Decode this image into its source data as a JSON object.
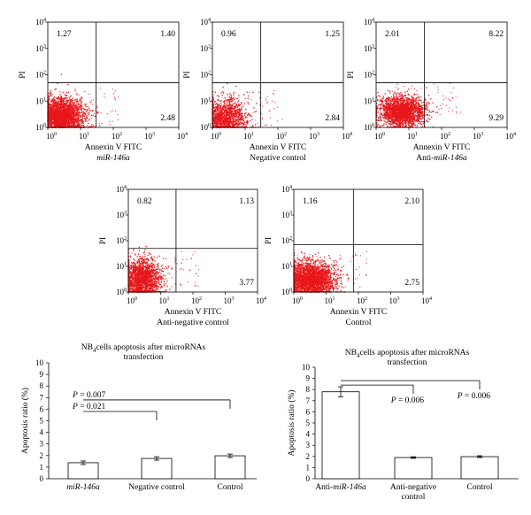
{
  "figure": {
    "caption": ""
  },
  "chart_data": [
    {
      "type": "scatter",
      "title": "",
      "xlabel": "Annexin V FITC",
      "ylabel": "PI",
      "caption": "miR-146a",
      "caption_italic": true,
      "x_scale": "log",
      "y_scale": "log",
      "xlim": [
        1,
        10000
      ],
      "ylim": [
        1,
        10000
      ],
      "x_gate": 30,
      "y_gate": 50,
      "quadrant_values": {
        "upper_left": "1.27",
        "upper_right": "1.40",
        "lower_right": "2.48"
      },
      "cloud": {
        "x_center": 2.5,
        "y_center": 2.5,
        "x_spread": 0.35,
        "y_spread": 0.35,
        "events": 2600,
        "seed": 11
      }
    },
    {
      "type": "scatter",
      "title": "",
      "xlabel": "Annexin V FITC",
      "ylabel": "PI",
      "caption": "Negative control",
      "caption_italic": false,
      "x_scale": "log",
      "y_scale": "log",
      "xlim": [
        1,
        10000
      ],
      "ylim": [
        1,
        10000
      ],
      "x_gate": 30,
      "y_gate": 50,
      "quadrant_values": {
        "upper_left": "0.96",
        "upper_right": "1.25",
        "lower_right": "2.84"
      },
      "cloud": {
        "x_center": 2.2,
        "y_center": 2.0,
        "x_spread": 0.35,
        "y_spread": 0.4,
        "events": 1500,
        "seed": 23
      }
    },
    {
      "type": "scatter",
      "title": "",
      "xlabel": "Annexin V FITC",
      "ylabel": "PI",
      "caption": "Anti-miR-146a",
      "caption_italic": false,
      "x_scale": "log",
      "y_scale": "log",
      "xlim": [
        1,
        10000
      ],
      "ylim": [
        1,
        10000
      ],
      "x_gate": 30,
      "y_gate": 50,
      "quadrant_values": {
        "upper_left": "2.01",
        "upper_right": "8.22",
        "lower_right": "9.29"
      },
      "cloud": {
        "x_center": 6,
        "y_center": 4,
        "x_spread": 0.35,
        "y_spread": 0.28,
        "events": 2000,
        "seed": 37
      }
    },
    {
      "type": "scatter",
      "title": "",
      "xlabel": "Annexin V FITC",
      "ylabel": "PI",
      "caption": "Anti-negative control",
      "caption_italic": false,
      "x_scale": "log",
      "y_scale": "log",
      "xlim": [
        1,
        10000
      ],
      "ylim": [
        1,
        10000
      ],
      "x_gate": 30,
      "y_gate": 50,
      "quadrant_values": {
        "upper_left": "0.82",
        "upper_right": "1.13",
        "lower_right": "3.77"
      },
      "cloud": {
        "x_center": 2.5,
        "y_center": 3.0,
        "x_spread": 0.3,
        "y_spread": 0.4,
        "events": 1800,
        "seed": 41
      }
    },
    {
      "type": "scatter",
      "title": "",
      "xlabel": "Annexin V FITC",
      "ylabel": "PI",
      "caption": "Control",
      "caption_italic": false,
      "x_scale": "log",
      "y_scale": "log",
      "xlim": [
        1,
        10000
      ],
      "ylim": [
        1,
        10000
      ],
      "x_gate": 70,
      "y_gate": 70,
      "quadrant_values": {
        "upper_left": "1.16",
        "upper_right": "2.10",
        "lower_right": "2.75"
      },
      "cloud": {
        "x_center": 3.0,
        "y_center": 3.0,
        "x_spread": 0.4,
        "y_spread": 0.35,
        "events": 2600,
        "seed": 53
      }
    },
    {
      "type": "bar",
      "title_line1_prefix": "NB",
      "title_line1_sub": "4",
      "title_line1_rest": "cells apoptosis after microRNAs",
      "title_line2": "transfection",
      "xlabel": "",
      "ylabel": "Apoptosis ratio (%)",
      "ylim": [
        0,
        10
      ],
      "yticks": [
        "0",
        "1",
        "2",
        "3",
        "4",
        "5",
        "6",
        "7",
        "8",
        "9",
        "10"
      ],
      "categories": [
        "miR-146a",
        "Negative control",
        "Control"
      ],
      "category_italic": [
        true,
        false,
        false
      ],
      "values": [
        1.38,
        1.75,
        1.98
      ],
      "errors": [
        0.15,
        0.15,
        0.15
      ],
      "annotations": [
        {
          "text": "P = 0.007",
          "from": 0,
          "to": 2,
          "y": 6.8
        },
        {
          "text": "P = 0.021",
          "from": 0,
          "to": 1,
          "y": 5.8
        }
      ]
    },
    {
      "type": "bar",
      "title_line1_prefix": "NB",
      "title_line1_sub": "4",
      "title_line1_rest": "cells apoptosis after microRNAs",
      "title_line2": "transfection",
      "xlabel": "",
      "ylabel": "Apoptosis ratio (%)",
      "ylim": [
        0,
        10
      ],
      "yticks": [
        "0",
        "1",
        "2",
        "3",
        "4",
        "5",
        "6",
        "7",
        "8",
        "9",
        "10"
      ],
      "categories": [
        "Anti-miR-146a",
        "Anti-negative control",
        "Control"
      ],
      "category_italic": [
        false,
        false,
        false
      ],
      "values": [
        7.8,
        1.9,
        1.98
      ],
      "errors": [
        0.45,
        0.07,
        0.08
      ],
      "annotations": [
        {
          "text": "P = 0.006",
          "from": 0,
          "to": 1,
          "y": 8.4
        },
        {
          "text": "P = 0.006",
          "from": 0,
          "to": 2,
          "y": 8.8
        }
      ]
    }
  ]
}
